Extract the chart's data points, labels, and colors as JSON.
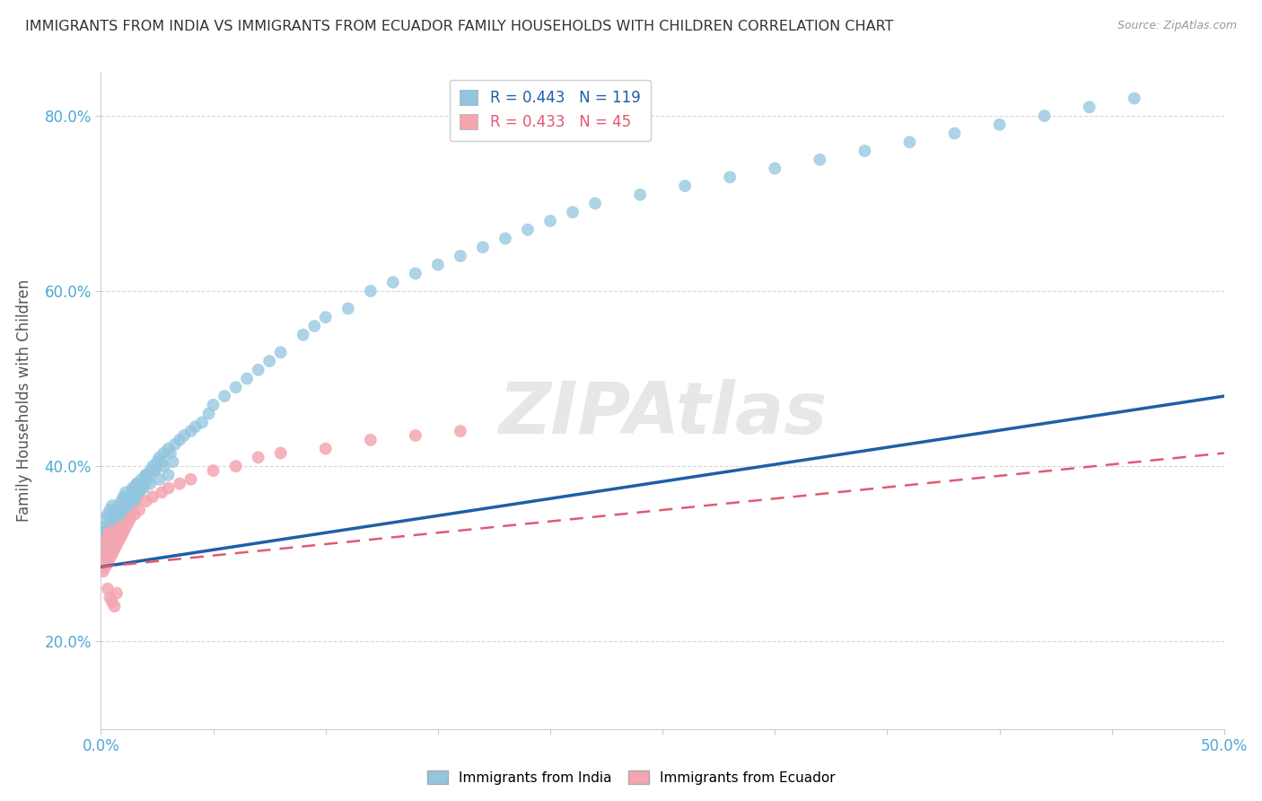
{
  "title": "IMMIGRANTS FROM INDIA VS IMMIGRANTS FROM ECUADOR FAMILY HOUSEHOLDS WITH CHILDREN CORRELATION CHART",
  "source": "Source: ZipAtlas.com",
  "ylabel": "Family Households with Children",
  "xlim": [
    0.0,
    0.5
  ],
  "ylim": [
    0.1,
    0.85
  ],
  "xtick_positions": [
    0.0,
    0.05,
    0.1,
    0.15,
    0.2,
    0.25,
    0.3,
    0.35,
    0.4,
    0.45,
    0.5
  ],
  "xtick_labels": [
    "0.0%",
    "",
    "",
    "",
    "",
    "",
    "",
    "",
    "",
    "",
    "50.0%"
  ],
  "ytick_positions": [
    0.2,
    0.4,
    0.6,
    0.8
  ],
  "ytick_labels": [
    "20.0%",
    "40.0%",
    "60.0%",
    "80.0%"
  ],
  "india_color": "#92c5de",
  "ecuador_color": "#f4a6b0",
  "india_line_color": "#1f5fa6",
  "ecuador_line_color": "#e05a72",
  "india_R": 0.443,
  "india_N": 119,
  "ecuador_R": 0.433,
  "ecuador_N": 45,
  "watermark": "ZIPAtlas",
  "background_color": "#ffffff",
  "grid_color": "#d8d8d8",
  "title_color": "#333333",
  "axis_label_color": "#555555",
  "tick_color": "#4ea8d4",
  "watermark_color": "#d0d0d0",
  "india_x": [
    0.001,
    0.001,
    0.001,
    0.002,
    0.002,
    0.002,
    0.002,
    0.003,
    0.003,
    0.003,
    0.003,
    0.004,
    0.004,
    0.004,
    0.004,
    0.005,
    0.005,
    0.005,
    0.005,
    0.006,
    0.006,
    0.006,
    0.007,
    0.007,
    0.007,
    0.008,
    0.008,
    0.008,
    0.009,
    0.009,
    0.01,
    0.01,
    0.01,
    0.011,
    0.011,
    0.012,
    0.012,
    0.013,
    0.013,
    0.014,
    0.014,
    0.015,
    0.015,
    0.016,
    0.016,
    0.017,
    0.018,
    0.019,
    0.02,
    0.021,
    0.022,
    0.023,
    0.024,
    0.025,
    0.026,
    0.027,
    0.028,
    0.03,
    0.031,
    0.033,
    0.035,
    0.037,
    0.04,
    0.042,
    0.045,
    0.048,
    0.05,
    0.055,
    0.06,
    0.065,
    0.07,
    0.075,
    0.08,
    0.09,
    0.095,
    0.1,
    0.11,
    0.12,
    0.13,
    0.14,
    0.15,
    0.16,
    0.17,
    0.18,
    0.19,
    0.2,
    0.21,
    0.22,
    0.24,
    0.26,
    0.28,
    0.3,
    0.32,
    0.34,
    0.36,
    0.38,
    0.4,
    0.42,
    0.44,
    0.46,
    0.008,
    0.009,
    0.01,
    0.011,
    0.012,
    0.013,
    0.014,
    0.015,
    0.016,
    0.017,
    0.018,
    0.019,
    0.02,
    0.022,
    0.024,
    0.026,
    0.028,
    0.03,
    0.032
  ],
  "india_y": [
    0.305,
    0.32,
    0.33,
    0.295,
    0.31,
    0.325,
    0.34,
    0.3,
    0.315,
    0.33,
    0.345,
    0.305,
    0.32,
    0.335,
    0.35,
    0.31,
    0.325,
    0.34,
    0.355,
    0.315,
    0.33,
    0.345,
    0.32,
    0.335,
    0.35,
    0.325,
    0.34,
    0.355,
    0.33,
    0.345,
    0.335,
    0.35,
    0.365,
    0.34,
    0.355,
    0.345,
    0.36,
    0.35,
    0.365,
    0.355,
    0.37,
    0.36,
    0.375,
    0.365,
    0.38,
    0.37,
    0.375,
    0.38,
    0.39,
    0.385,
    0.395,
    0.4,
    0.395,
    0.405,
    0.41,
    0.405,
    0.415,
    0.42,
    0.415,
    0.425,
    0.43,
    0.435,
    0.44,
    0.445,
    0.45,
    0.46,
    0.47,
    0.48,
    0.49,
    0.5,
    0.51,
    0.52,
    0.53,
    0.55,
    0.56,
    0.57,
    0.58,
    0.6,
    0.61,
    0.62,
    0.63,
    0.64,
    0.65,
    0.66,
    0.67,
    0.68,
    0.69,
    0.7,
    0.71,
    0.72,
    0.73,
    0.74,
    0.75,
    0.76,
    0.77,
    0.78,
    0.79,
    0.8,
    0.81,
    0.82,
    0.35,
    0.36,
    0.34,
    0.37,
    0.355,
    0.365,
    0.375,
    0.36,
    0.38,
    0.37,
    0.385,
    0.375,
    0.39,
    0.38,
    0.395,
    0.385,
    0.4,
    0.39,
    0.405
  ],
  "ecuador_x": [
    0.001,
    0.001,
    0.002,
    0.002,
    0.002,
    0.003,
    0.003,
    0.003,
    0.004,
    0.004,
    0.004,
    0.005,
    0.005,
    0.006,
    0.006,
    0.007,
    0.007,
    0.008,
    0.008,
    0.009,
    0.01,
    0.011,
    0.012,
    0.013,
    0.015,
    0.017,
    0.02,
    0.023,
    0.027,
    0.03,
    0.035,
    0.04,
    0.05,
    0.06,
    0.07,
    0.08,
    0.1,
    0.12,
    0.14,
    0.16,
    0.003,
    0.004,
    0.005,
    0.006,
    0.007
  ],
  "ecuador_y": [
    0.28,
    0.295,
    0.285,
    0.3,
    0.315,
    0.29,
    0.305,
    0.32,
    0.295,
    0.31,
    0.325,
    0.3,
    0.315,
    0.305,
    0.32,
    0.31,
    0.325,
    0.315,
    0.33,
    0.32,
    0.325,
    0.33,
    0.335,
    0.34,
    0.345,
    0.35,
    0.36,
    0.365,
    0.37,
    0.375,
    0.38,
    0.385,
    0.395,
    0.4,
    0.41,
    0.415,
    0.42,
    0.43,
    0.435,
    0.44,
    0.26,
    0.25,
    0.245,
    0.24,
    0.255
  ]
}
